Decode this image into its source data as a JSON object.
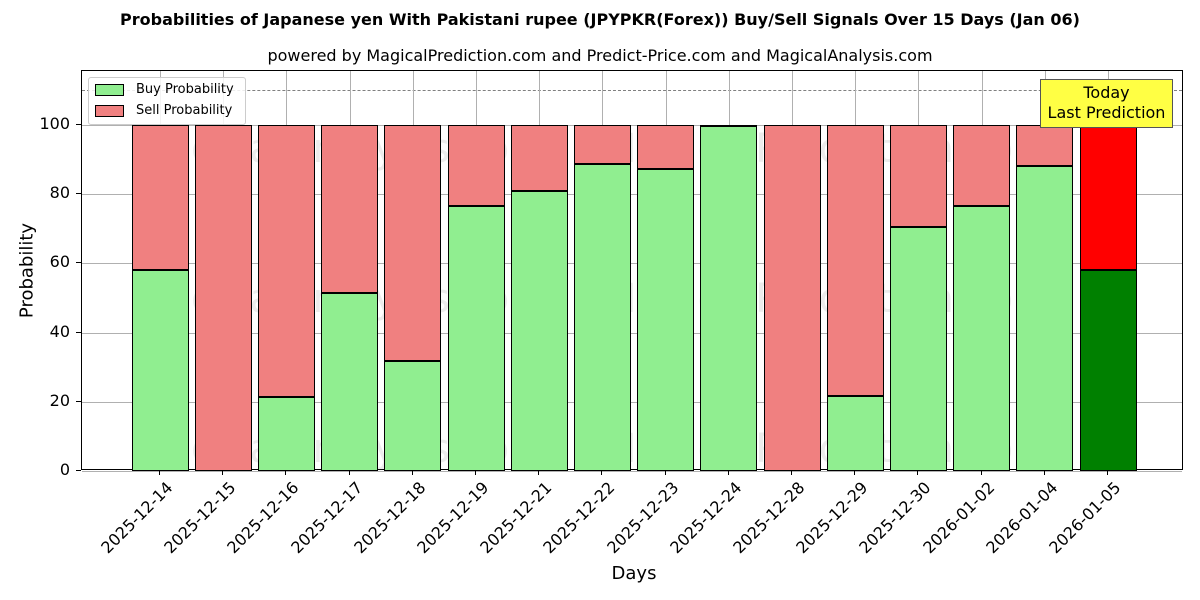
{
  "chart_data": {
    "type": "bar",
    "stacked": true,
    "title": "Probabilities of Japanese yen With Pakistani rupee (JPYPKR(Forex)) Buy/Sell Signals Over 15 Days (Jan 06)",
    "subtitle": "powered by MagicalPrediction.com and Predict-Price.com and MagicalAnalysis.com",
    "xlabel": "Days",
    "ylabel": "Probability",
    "ylim": [
      0,
      115
    ],
    "yticks": [
      0,
      20,
      40,
      60,
      80,
      100
    ],
    "reference_line": 110,
    "grid": true,
    "legend_position": "upper left",
    "categories": [
      "2025-12-14",
      "2025-12-15",
      "2025-12-16",
      "2025-12-17",
      "2025-12-18",
      "2025-12-19",
      "2025-12-21",
      "2025-12-22",
      "2025-12-23",
      "2025-12-24",
      "2025-12-28",
      "2025-12-29",
      "2025-12-30",
      "2026-01-02",
      "2026-01-04",
      "2026-01-05"
    ],
    "series": [
      {
        "name": "Buy Probability",
        "color": "#90ee90",
        "values": [
          58.1,
          0,
          21.4,
          51.4,
          31.8,
          76.7,
          81.0,
          88.8,
          87.4,
          99.9,
          0,
          21.8,
          70.6,
          76.5,
          88.2,
          58.2
        ]
      },
      {
        "name": "Sell Probability",
        "color": "#f08080",
        "values": [
          41.9,
          100,
          78.6,
          48.6,
          68.2,
          23.3,
          19.0,
          11.2,
          12.6,
          0.1,
          100,
          78.2,
          29.4,
          23.5,
          11.8,
          41.8
        ]
      }
    ],
    "highlight": {
      "index": 15,
      "buy_color": "#008000",
      "sell_color": "#ff0000",
      "annotation": "Today\nLast Prediction"
    }
  },
  "legend": {
    "buy": "Buy Probability",
    "sell": "Sell Probability"
  },
  "annotation": {
    "line1": "Today",
    "line2": "Last Prediction"
  },
  "watermarks": [
    "MagicalAnalysis.com",
    "MagicalPrediction.com"
  ]
}
